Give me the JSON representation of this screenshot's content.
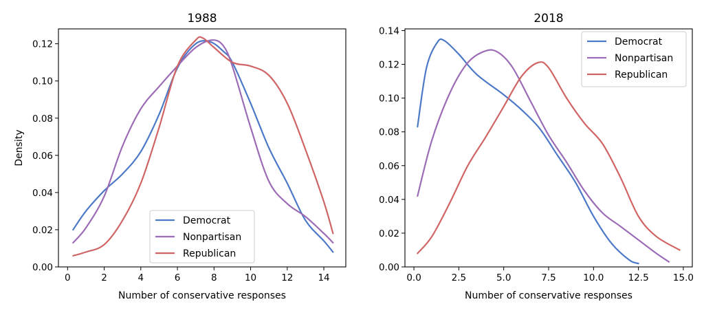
{
  "chart_data": [
    {
      "type": "line",
      "title": "1988",
      "xlabel": "Number of conservative responses",
      "ylabel": "Density",
      "xlim": [
        -0.5,
        15.2
      ],
      "ylim": [
        0,
        0.128
      ],
      "xticks": [
        0,
        2,
        4,
        6,
        8,
        10,
        12,
        14
      ],
      "xtick_labels": [
        "0",
        "2",
        "4",
        "6",
        "8",
        "10",
        "12",
        "14"
      ],
      "yticks": [
        0,
        0.02,
        0.04,
        0.06,
        0.08,
        0.1,
        0.12
      ],
      "ytick_labels": [
        "0.00",
        "0.02",
        "0.04",
        "0.06",
        "0.08",
        "0.10",
        "0.12"
      ],
      "grid": false,
      "legend": "lower-center",
      "series": [
        {
          "name": "Democrat",
          "color": "#4c78c8",
          "points": [
            [
              0.3,
              0.02
            ],
            [
              1,
              0.03
            ],
            [
              2,
              0.041
            ],
            [
              3,
              0.05
            ],
            [
              4,
              0.062
            ],
            [
              5,
              0.082
            ],
            [
              6,
              0.107
            ],
            [
              7,
              0.12
            ],
            [
              7.8,
              0.121
            ],
            [
              8.5,
              0.116
            ],
            [
              9,
              0.11
            ],
            [
              10,
              0.088
            ],
            [
              11,
              0.064
            ],
            [
              12,
              0.045
            ],
            [
              13,
              0.025
            ],
            [
              14,
              0.014
            ],
            [
              14.5,
              0.008
            ]
          ]
        },
        {
          "name": "Nonpartisan",
          "color": "#9b6bb5",
          "points": [
            [
              0.3,
              0.013
            ],
            [
              1,
              0.021
            ],
            [
              2,
              0.038
            ],
            [
              3,
              0.065
            ],
            [
              4,
              0.085
            ],
            [
              5,
              0.097
            ],
            [
              6,
              0.108
            ],
            [
              7,
              0.118
            ],
            [
              7.9,
              0.122
            ],
            [
              8.5,
              0.119
            ],
            [
              9,
              0.108
            ],
            [
              10,
              0.075
            ],
            [
              11,
              0.046
            ],
            [
              12,
              0.034
            ],
            [
              13,
              0.027
            ],
            [
              14,
              0.018
            ],
            [
              14.5,
              0.013
            ]
          ]
        },
        {
          "name": "Republican",
          "color": "#d06464",
          "points": [
            [
              0.3,
              0.006
            ],
            [
              1,
              0.008
            ],
            [
              2,
              0.012
            ],
            [
              3,
              0.025
            ],
            [
              4,
              0.045
            ],
            [
              5,
              0.075
            ],
            [
              6,
              0.108
            ],
            [
              7,
              0.122
            ],
            [
              7.4,
              0.123
            ],
            [
              8,
              0.118
            ],
            [
              9,
              0.11
            ],
            [
              10,
              0.108
            ],
            [
              11,
              0.103
            ],
            [
              12,
              0.088
            ],
            [
              13,
              0.063
            ],
            [
              14,
              0.035
            ],
            [
              14.5,
              0.018
            ]
          ]
        }
      ]
    },
    {
      "type": "line",
      "title": "2018",
      "xlabel": "Number of conservative responses",
      "ylabel": "",
      "xlim": [
        -0.5,
        15.5
      ],
      "ylim": [
        0,
        0.141
      ],
      "xticks": [
        0,
        2.5,
        5,
        7.5,
        10,
        12.5,
        15
      ],
      "xtick_labels": [
        "0.0",
        "2.5",
        "5.0",
        "7.5",
        "10.0",
        "12.5",
        "15.0"
      ],
      "yticks": [
        0,
        0.02,
        0.04,
        0.06,
        0.08,
        0.1,
        0.12,
        0.14
      ],
      "ytick_labels": [
        "0.00",
        "0.02",
        "0.04",
        "0.06",
        "0.08",
        "0.10",
        "0.12",
        "0.14"
      ],
      "grid": false,
      "legend": "top-right",
      "series": [
        {
          "name": "Democrat",
          "color": "#4c78c8",
          "points": [
            [
              0.2,
              0.083
            ],
            [
              0.7,
              0.118
            ],
            [
              1.3,
              0.133
            ],
            [
              1.7,
              0.134
            ],
            [
              2.5,
              0.126
            ],
            [
              3.5,
              0.114
            ],
            [
              5,
              0.102
            ],
            [
              6,
              0.093
            ],
            [
              7,
              0.082
            ],
            [
              8,
              0.066
            ],
            [
              9,
              0.05
            ],
            [
              10,
              0.03
            ],
            [
              11,
              0.014
            ],
            [
              12,
              0.004
            ],
            [
              12.5,
              0.002
            ]
          ]
        },
        {
          "name": "Nonpartisan",
          "color": "#9b6bb5",
          "points": [
            [
              0.2,
              0.042
            ],
            [
              1,
              0.075
            ],
            [
              2,
              0.103
            ],
            [
              3,
              0.121
            ],
            [
              4,
              0.128
            ],
            [
              4.7,
              0.127
            ],
            [
              5.5,
              0.118
            ],
            [
              6.5,
              0.098
            ],
            [
              7.5,
              0.078
            ],
            [
              8.5,
              0.062
            ],
            [
              9.5,
              0.045
            ],
            [
              10.5,
              0.032
            ],
            [
              11.5,
              0.024
            ],
            [
              12.5,
              0.016
            ],
            [
              13.5,
              0.008
            ],
            [
              14.2,
              0.003
            ]
          ]
        },
        {
          "name": "Republican",
          "color": "#d06464",
          "points": [
            [
              0.2,
              0.008
            ],
            [
              1,
              0.018
            ],
            [
              2,
              0.038
            ],
            [
              3,
              0.06
            ],
            [
              4,
              0.077
            ],
            [
              5,
              0.095
            ],
            [
              6,
              0.113
            ],
            [
              6.9,
              0.121
            ],
            [
              7.5,
              0.118
            ],
            [
              8.5,
              0.1
            ],
            [
              9.5,
              0.085
            ],
            [
              10.5,
              0.073
            ],
            [
              11.5,
              0.053
            ],
            [
              12.5,
              0.03
            ],
            [
              13.5,
              0.018
            ],
            [
              14.8,
              0.01
            ]
          ]
        }
      ]
    }
  ]
}
